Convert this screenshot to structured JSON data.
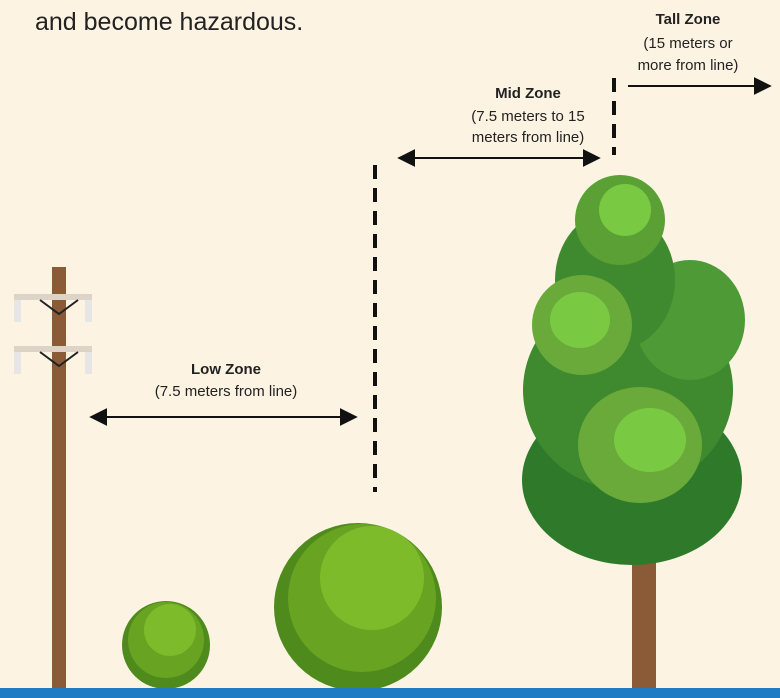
{
  "intro": {
    "text": "and become hazardous."
  },
  "zones": [
    {
      "name": "Low Zone",
      "lines": [
        "(7.5 meters from line)"
      ]
    },
    {
      "name": "Mid Zone",
      "lines": [
        "(7.5 meters to 15",
        "meters from line)"
      ]
    },
    {
      "name": "Tall Zone",
      "lines": [
        "(15 meters or",
        "more from line)"
      ]
    }
  ]
}
